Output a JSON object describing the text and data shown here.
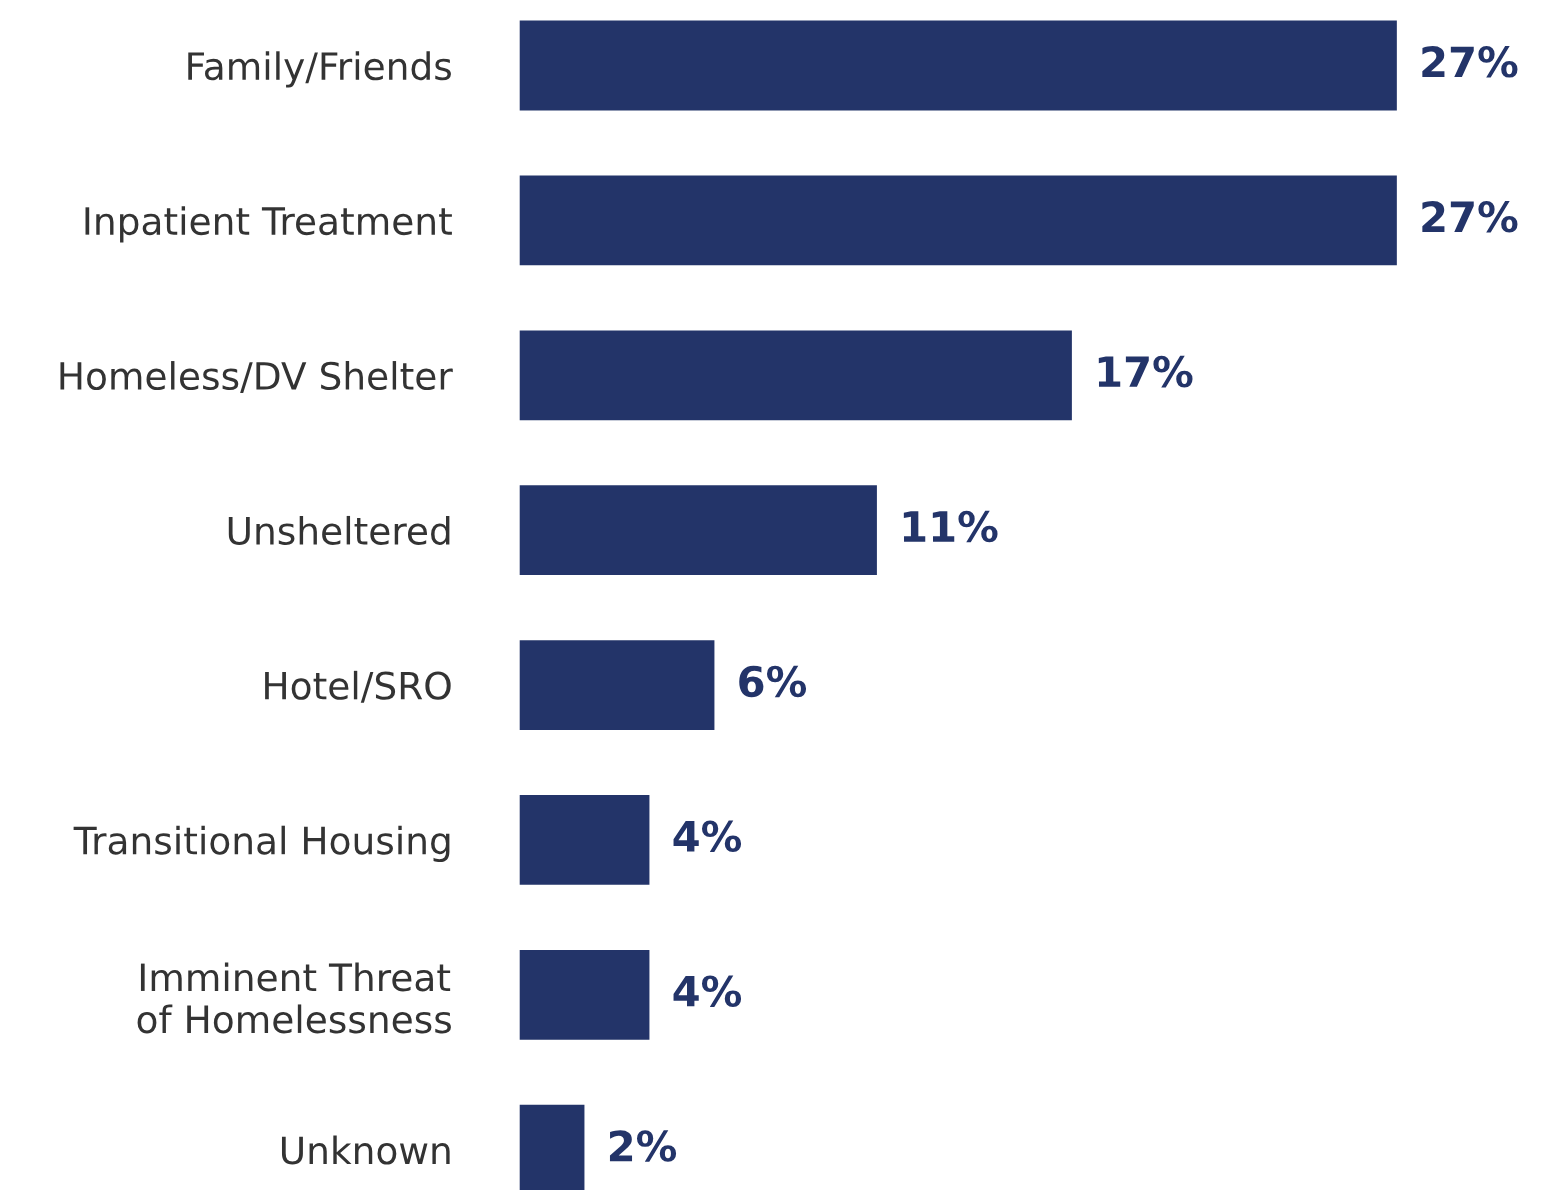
{
  "chart_data": {
    "type": "bar",
    "orientation": "horizontal",
    "categories": [
      "Family/Friends",
      "Inpatient Treatment",
      "Homeless/DV Shelter",
      "Unsheltered",
      "Hotel/SRO",
      "Transitional Housing",
      "Imminent Threat\nof Homelessness",
      "Unknown"
    ],
    "values": [
      27,
      27,
      17,
      11,
      6,
      4,
      4,
      2
    ],
    "value_labels": [
      "27%",
      "27%",
      "17%",
      "11%",
      "6%",
      "4%",
      "4%",
      "2%"
    ],
    "color": "#233469",
    "tick_labels": "y",
    "grid": false,
    "legend": false
  }
}
